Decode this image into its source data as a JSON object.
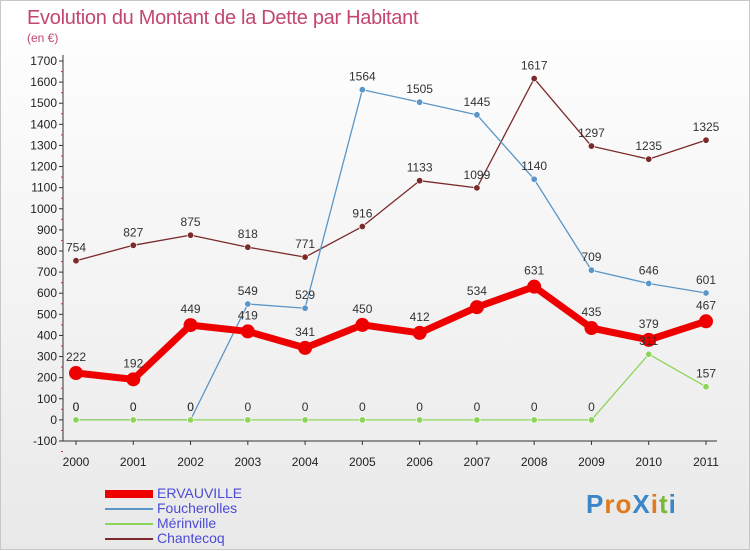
{
  "title": "Evolution du Montant de la Dette par Habitant",
  "unit": "(en €)",
  "logo": "ProXiti",
  "chart_data": {
    "type": "line",
    "x": [
      "2000",
      "2001",
      "2002",
      "2003",
      "2004",
      "2005",
      "2006",
      "2007",
      "2008",
      "2009",
      "2010",
      "2011"
    ],
    "ylim": [
      -100,
      1700
    ],
    "yticks": [
      -100,
      0,
      100,
      200,
      300,
      400,
      500,
      600,
      700,
      800,
      900,
      1000,
      1100,
      1200,
      1300,
      1400,
      1500,
      1600,
      1700
    ],
    "grid": false,
    "legend_position": "bottom-left",
    "series": [
      {
        "name": "ERVAUVILLE",
        "color": "#ee0000",
        "values": [
          222,
          192,
          449,
          419,
          341,
          450,
          412,
          534,
          631,
          435,
          379,
          467
        ]
      },
      {
        "name": "Foucherolles",
        "color": "#5a96c8",
        "values": [
          0,
          0,
          0,
          549,
          529,
          1564,
          1505,
          1445,
          1140,
          709,
          646,
          601
        ]
      },
      {
        "name": "Mérinville",
        "color": "#8ed45a",
        "values": [
          0,
          0,
          0,
          0,
          0,
          0,
          0,
          0,
          0,
          0,
          311,
          157
        ]
      },
      {
        "name": "Chantecoq",
        "color": "#7a2a2a",
        "values": [
          754,
          827,
          875,
          818,
          771,
          916,
          1133,
          1099,
          1617,
          1297,
          1235,
          1325
        ]
      }
    ]
  }
}
